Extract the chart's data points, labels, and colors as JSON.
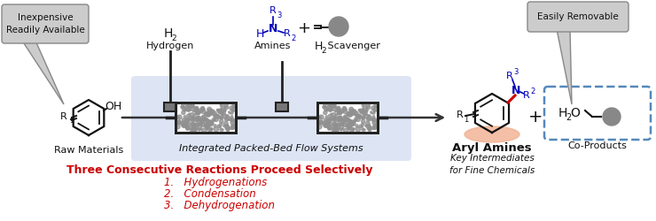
{
  "bg_color": "#ffffff",
  "flow_box_color": "#ccd8f0",
  "reactor_edge": "#222222",
  "arrow_color": "#333333",
  "blue_color": "#0000bb",
  "red_color": "#cc0000",
  "red_bond_color": "#cc0000",
  "dark_color": "#111111",
  "speech_fill": "#cccccc",
  "speech_edge": "#888888",
  "dashed_box_color": "#5588bb",
  "peach_color": "#f0b090",
  "title": "Three Consecutive Reactions Proceed Selectively",
  "reactions": [
    "1.   Hydrogenations",
    "2.   Condensation",
    "3.   Dehydrogenation"
  ],
  "label_raw": "Raw Materials",
  "label_hydrogen2": "Hydrogen",
  "label_amines": "Amines",
  "label_flow": "Integrated Packed-Bed Flow Systems",
  "label_aryl": "Aryl Amines",
  "label_key": "Key Intermediates\nfor Fine Chemicals",
  "label_coproducts": "Co-Products",
  "speech1_line1": "Inexpensive",
  "speech1_line2": "Readily Available",
  "speech2": "Easily Removable"
}
